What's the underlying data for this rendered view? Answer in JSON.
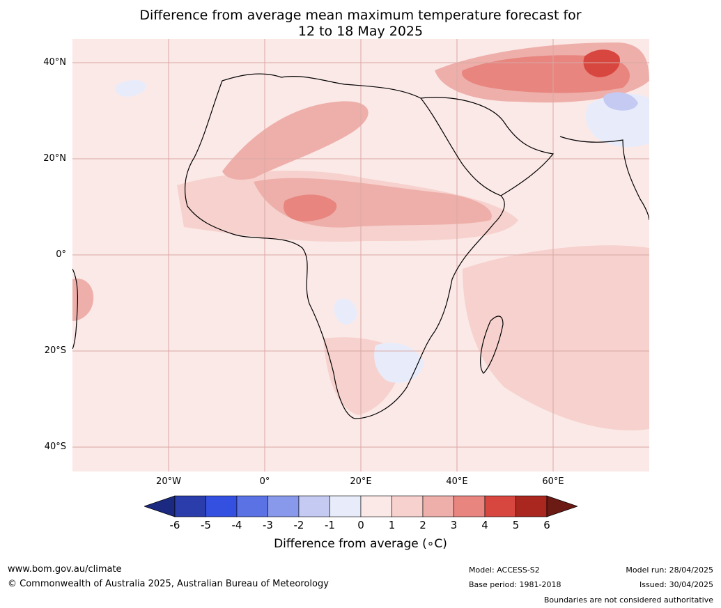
{
  "title": {
    "line1": "Difference from average mean maximum temperature forecast for",
    "line2": "12 to 18 May 2025"
  },
  "map": {
    "lat_labels": [
      "40°N",
      "20°N",
      "0°",
      "20°S",
      "40°S"
    ],
    "lon_labels": [
      "20°W",
      "0°",
      "20°E",
      "40°E",
      "60°E"
    ],
    "ocean_color": "#fbe9e7",
    "region_colors": {
      "warm_1_2": "#f6d1cd",
      "warm_2_3": "#eeafaa",
      "warm_3_4": "#e8857f",
      "warm_4_5": "#d8473f",
      "cool_m1_0": "#e8ecfa",
      "cool_m2_m1": "#c4caf2"
    }
  },
  "colorbar": {
    "label": "Difference from average (∘C)",
    "ticks": [
      "-6",
      "-5",
      "-4",
      "-3",
      "-2",
      "-1",
      "0",
      "1",
      "2",
      "3",
      "4",
      "5",
      "6"
    ],
    "colors": [
      "#1b2a80",
      "#2a3daa",
      "#3450e0",
      "#5a72e4",
      "#8898ea",
      "#c4caf2",
      "#e8ecfa",
      "#fbe9e7",
      "#f6d1cd",
      "#eeafaa",
      "#e8857f",
      "#d8473f",
      "#a9271f",
      "#6b1a14"
    ]
  },
  "footer": {
    "website": "www.bom.gov.au/climate",
    "copyright": "© Commonwealth of Australia 2025, Australian Bureau of Meteorology",
    "model": "Model: ACCESS-S2",
    "base_period": "Base period: 1981-2018",
    "model_run": "Model run: 28/04/2025",
    "issued": "Issued: 30/04/2025",
    "disclaimer": "Boundaries are not considered authoritative"
  }
}
